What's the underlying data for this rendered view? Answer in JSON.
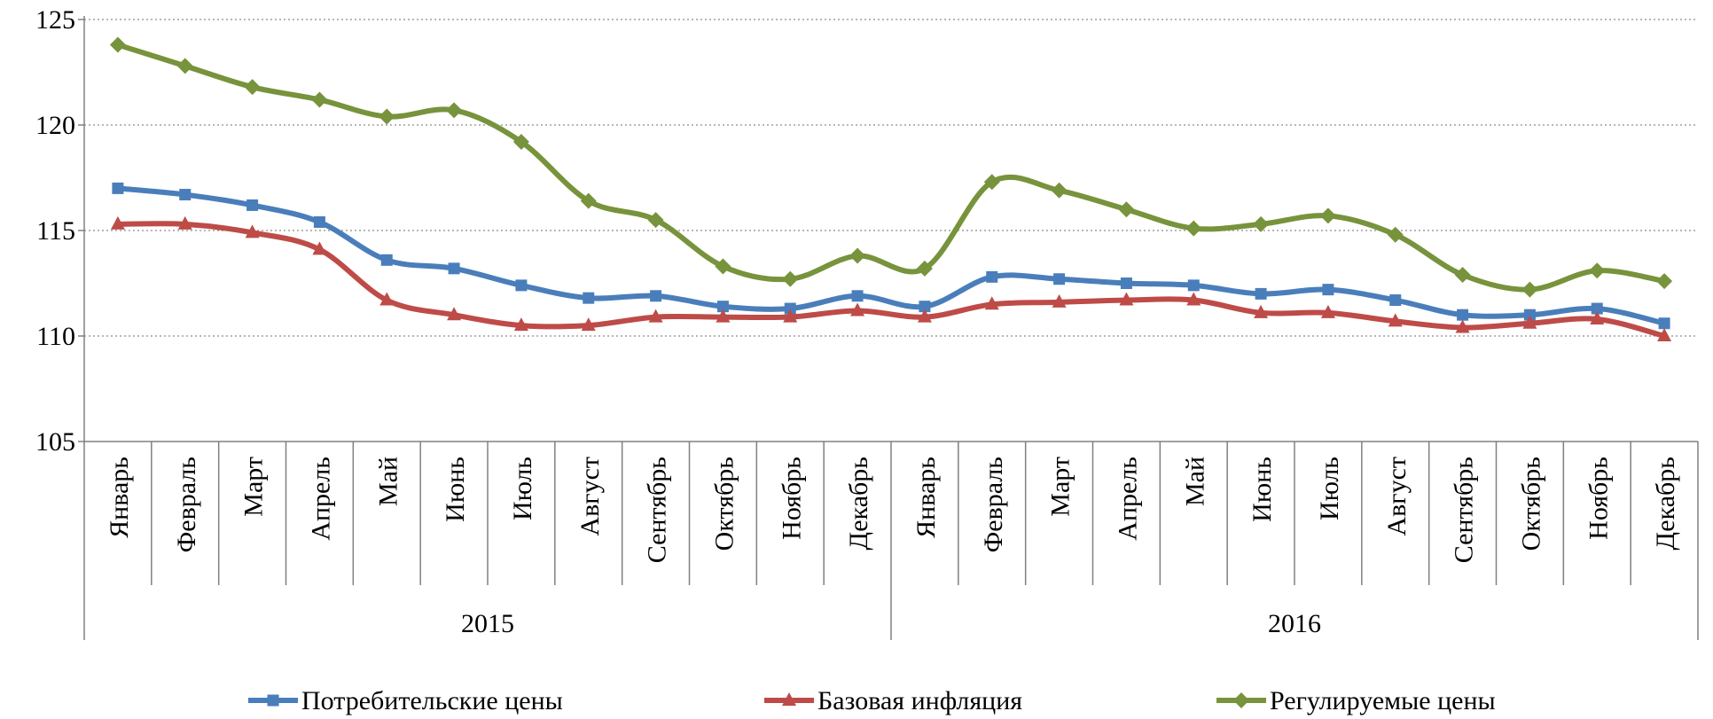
{
  "chart_data": {
    "type": "line",
    "title": "",
    "xlabel": "",
    "ylabel": "",
    "ylim": [
      105,
      125
    ],
    "yticks": [
      105,
      110,
      115,
      120,
      125
    ],
    "grid": true,
    "legend_position": "bottom",
    "groups": [
      {
        "label": "2015",
        "months": [
          "Январь",
          "Февраль",
          "Март",
          "Апрель",
          "Май",
          "Июнь",
          "Июль",
          "Август",
          "Сентябрь",
          "Октябрь",
          "Ноябрь",
          "Декабрь"
        ]
      },
      {
        "label": "2016",
        "months": [
          "Январь",
          "Февраль",
          "Март",
          "Апрель",
          "Май",
          "Июнь",
          "Июль",
          "Август",
          "Сентябрь",
          "Октябрь",
          "Ноябрь",
          "Декабрь"
        ]
      }
    ],
    "series": [
      {
        "name": "Потребительские цены",
        "color": "#4a7ebb",
        "marker": "square",
        "values": [
          117.0,
          116.7,
          116.2,
          115.4,
          113.6,
          113.2,
          112.4,
          111.8,
          111.9,
          111.4,
          111.3,
          111.9,
          111.4,
          112.8,
          112.7,
          112.5,
          112.4,
          112.0,
          112.2,
          111.7,
          111.0,
          111.0,
          111.3,
          110.6
        ]
      },
      {
        "name": "Базовая инфляция",
        "color": "#be4b48",
        "marker": "triangle",
        "values": [
          115.3,
          115.3,
          114.9,
          114.1,
          111.7,
          111.0,
          110.5,
          110.5,
          110.9,
          110.9,
          110.9,
          111.2,
          110.9,
          111.5,
          111.6,
          111.7,
          111.7,
          111.1,
          111.1,
          110.7,
          110.4,
          110.6,
          110.8,
          110.0
        ]
      },
      {
        "name": "Регулируемые цены",
        "color": "#77933c",
        "marker": "diamond",
        "values": [
          123.8,
          122.8,
          121.8,
          121.2,
          120.4,
          120.7,
          119.2,
          116.4,
          115.5,
          113.3,
          112.7,
          113.8,
          113.2,
          117.3,
          116.9,
          116.0,
          115.1,
          115.3,
          115.7,
          114.8,
          112.9,
          112.2,
          113.1,
          112.6
        ]
      }
    ]
  }
}
